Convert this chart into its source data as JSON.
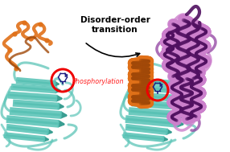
{
  "background_color": "#ffffff",
  "arrow_text": "Disorder-order\ntransition",
  "arrow_text_fontsize": 7.5,
  "arrow_text_fontweight": "bold",
  "arrow_text_color": "#000000",
  "phospho_text": "Phosphorylation",
  "phospho_text_fontsize": 5.8,
  "phospho_text_color": "#ff2020",
  "circle_color": "#ee0000",
  "circle_linewidth": 1.4,
  "teal_color": "#5dc5b8",
  "teal_dark": "#3a9e92",
  "orange_color": "#e07018",
  "orange_dark": "#a04808",
  "purple_color": "#cc80cc",
  "purple_mid": "#9040a0",
  "purple_dark": "#501060",
  "phospho_symbol_color": "#1a1a80",
  "figwidth": 2.86,
  "figheight": 1.89,
  "dpi": 100
}
